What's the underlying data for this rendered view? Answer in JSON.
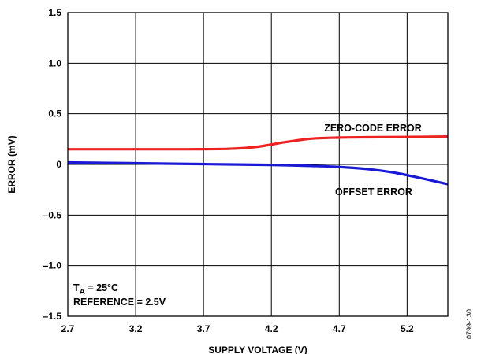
{
  "chart_data": {
    "type": "line",
    "xlabel": "SUPPLY VOLTAGE (V)",
    "ylabel": "ERROR (mV)",
    "xlim": [
      2.7,
      5.5
    ],
    "ylim": [
      -1.5,
      1.5
    ],
    "x_ticks": [
      2.7,
      3.2,
      3.7,
      4.2,
      4.7,
      5.2
    ],
    "x_tick_labels": [
      "2.7",
      "3.2",
      "3.7",
      "4.2",
      "4.7",
      "5.2"
    ],
    "y_ticks": [
      1.5,
      1.0,
      0.5,
      0,
      -0.5,
      -1.0,
      -1.5
    ],
    "y_tick_labels": [
      "1.5",
      "1.0",
      "0.5",
      "0",
      "–0.5",
      "–1.0",
      "–1.5"
    ],
    "grid": true,
    "series": [
      {
        "name": "ZERO-CODE ERROR",
        "color": "#ee2222",
        "x": [
          2.7,
          3.0,
          3.3,
          3.6,
          3.9,
          4.1,
          4.3,
          4.5,
          4.7,
          4.9,
          5.1,
          5.3,
          5.5
        ],
        "y": [
          0.15,
          0.15,
          0.15,
          0.15,
          0.155,
          0.175,
          0.22,
          0.255,
          0.265,
          0.268,
          0.27,
          0.272,
          0.275
        ]
      },
      {
        "name": "OFFSET ERROR",
        "color": "#1a1ad6",
        "x": [
          2.7,
          3.0,
          3.3,
          3.6,
          3.9,
          4.2,
          4.5,
          4.7,
          4.9,
          5.1,
          5.3,
          5.5
        ],
        "y": [
          0.02,
          0.015,
          0.01,
          0.005,
          0.0,
          -0.005,
          -0.015,
          -0.025,
          -0.045,
          -0.08,
          -0.135,
          -0.195
        ]
      }
    ],
    "annotations": {
      "zero_code": "ZERO-CODE ERROR",
      "offset": "OFFSET ERROR",
      "ta_prefix": "T",
      "ta_sub": "A",
      "ta_suffix": " = 25°C",
      "reference": "REFERENCE = 2.5V"
    },
    "figure_id": "0799-130"
  }
}
